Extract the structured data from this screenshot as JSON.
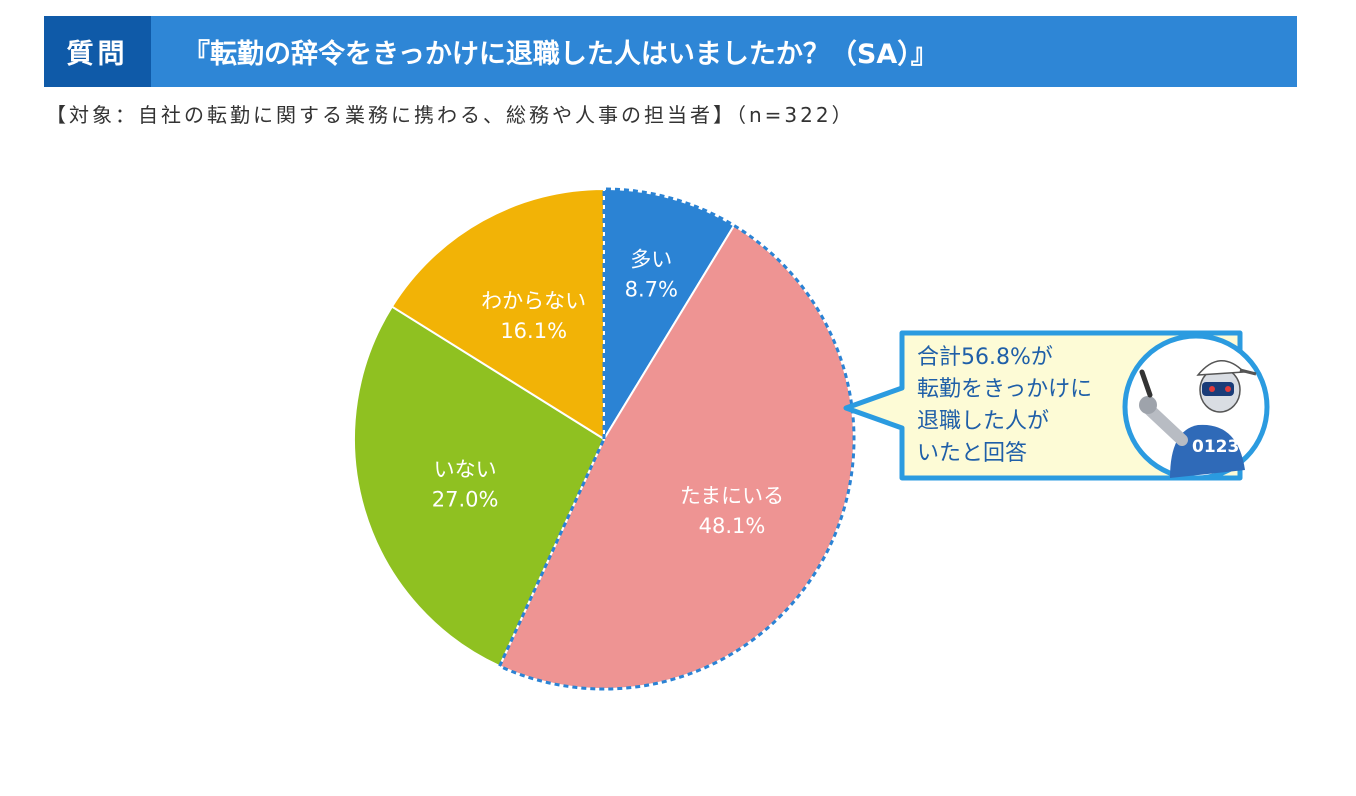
{
  "header": {
    "tag": "質問",
    "question": "『転勤の辞令をきっかけに退職した人はいましたか？（SA）』"
  },
  "subtitle": "【対象：自社の転勤に関する業務に携わる、総務や人事の担当者】（n=322）",
  "chart_data": {
    "type": "pie",
    "title": "",
    "slices": [
      {
        "label": "多い",
        "value": 8.7,
        "value_text": "8.7%",
        "color": "#2b83d4"
      },
      {
        "label": "たまにいる",
        "value": 48.1,
        "value_text": "48.1%",
        "color": "#ee9493"
      },
      {
        "label": "いない",
        "value": 27.0,
        "value_text": "27.0%",
        "color": "#8fc121"
      },
      {
        "label": "わからない",
        "value": 16.1,
        "value_text": "16.1%",
        "color": "#f2b306"
      }
    ],
    "highlight": [
      "多い",
      "たまにいる"
    ],
    "highlight_color": "#2b83d4"
  },
  "callout": {
    "lines": [
      "合計56.8%が",
      "転勤をきっかけに",
      "退職した人が",
      "いたと回答"
    ],
    "bg_color": "#fdfbd6",
    "border_color": "#2b9be0",
    "mascot_text": "0123"
  }
}
